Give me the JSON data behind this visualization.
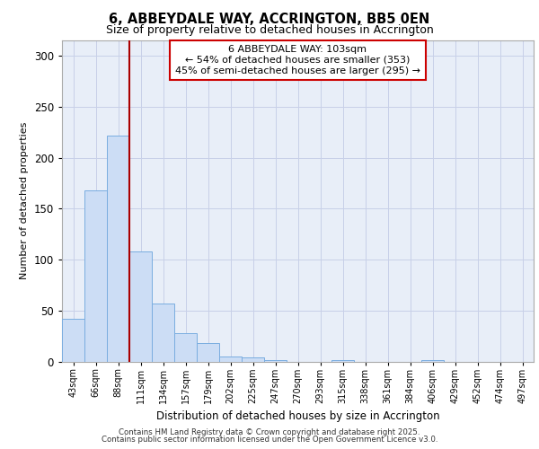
{
  "title_line1": "6, ABBEYDALE WAY, ACCRINGTON, BB5 0EN",
  "title_line2": "Size of property relative to detached houses in Accrington",
  "xlabel": "Distribution of detached houses by size in Accrington",
  "ylabel": "Number of detached properties",
  "categories": [
    "43sqm",
    "66sqm",
    "88sqm",
    "111sqm",
    "134sqm",
    "157sqm",
    "179sqm",
    "202sqm",
    "225sqm",
    "247sqm",
    "270sqm",
    "293sqm",
    "315sqm",
    "338sqm",
    "361sqm",
    "384sqm",
    "406sqm",
    "429sqm",
    "452sqm",
    "474sqm",
    "497sqm"
  ],
  "values": [
    42,
    168,
    222,
    108,
    57,
    28,
    18,
    5,
    4,
    1,
    0,
    0,
    1,
    0,
    0,
    0,
    1,
    0,
    0,
    0,
    0
  ],
  "bar_color": "#ccddf5",
  "bar_edge_color": "#7aade0",
  "grid_color": "#c8d0e8",
  "background_color": "#e8eef8",
  "vline_pos": 2.5,
  "vline_color": "#aa0000",
  "annotation_text": "6 ABBEYDALE WAY: 103sqm\n← 54% of detached houses are smaller (353)\n45% of semi-detached houses are larger (295) →",
  "annotation_box_facecolor": "#ffffff",
  "annotation_box_edgecolor": "#cc0000",
  "ylim": [
    0,
    315
  ],
  "yticks": [
    0,
    50,
    100,
    150,
    200,
    250,
    300
  ],
  "footer_line1": "Contains HM Land Registry data © Crown copyright and database right 2025.",
  "footer_line2": "Contains public sector information licensed under the Open Government Licence v3.0."
}
